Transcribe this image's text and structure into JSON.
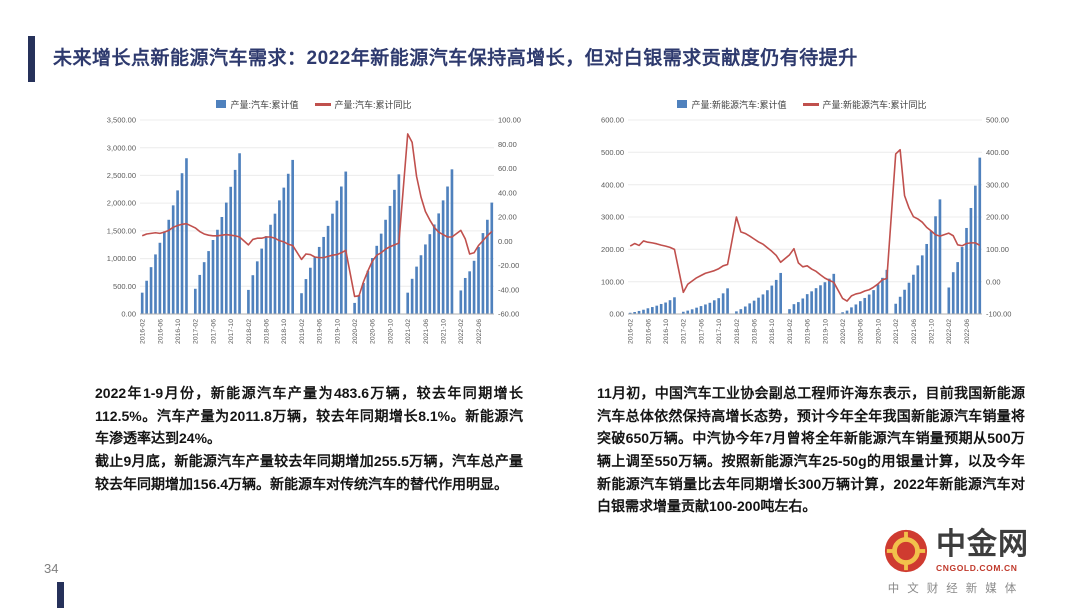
{
  "title": "未来增长点新能源汽车需求：2022年新能源汽车保持高增长，但对白银需求贡献度仍有待提升",
  "colors": {
    "accent_navy": "#26315a",
    "title_text": "#2e3a6e",
    "bar_blue": "#4f81bd",
    "line_red": "#c0504d"
  },
  "chart_data": [
    {
      "type": "bar",
      "subtype": "bar-line-combo",
      "legend_bar": "产量:汽车:累计值",
      "legend_line": "产量:汽车:累计同比",
      "bar_color": "#4f81bd",
      "line_color": "#c0504d",
      "left_axis": {
        "min": 0,
        "max": 3500,
        "step": 500
      },
      "right_axis": {
        "min": -60,
        "max": 100,
        "step": 20
      },
      "x": [
        "2016-02",
        "2016-03",
        "2016-04",
        "2016-05",
        "2016-06",
        "2016-07",
        "2016-08",
        "2016-09",
        "2016-10",
        "2016-11",
        "2016-12",
        "2017-02",
        "2017-03",
        "2017-04",
        "2017-05",
        "2017-06",
        "2017-07",
        "2017-08",
        "2017-09",
        "2017-10",
        "2017-11",
        "2017-12",
        "2018-02",
        "2018-03",
        "2018-04",
        "2018-05",
        "2018-06",
        "2018-07",
        "2018-08",
        "2018-09",
        "2018-10",
        "2018-11",
        "2018-12",
        "2019-02",
        "2019-03",
        "2019-04",
        "2019-05",
        "2019-06",
        "2019-07",
        "2019-08",
        "2019-09",
        "2019-10",
        "2019-11",
        "2019-12",
        "2020-02",
        "2020-03",
        "2020-04",
        "2020-05",
        "2020-06",
        "2020-07",
        "2020-08",
        "2020-09",
        "2020-10",
        "2020-11",
        "2020-12",
        "2021-02",
        "2021-03",
        "2021-04",
        "2021-05",
        "2021-06",
        "2021-07",
        "2021-08",
        "2021-09",
        "2021-10",
        "2021-11",
        "2021-12",
        "2022-02",
        "2022-03",
        "2022-04",
        "2022-05",
        "2022-06",
        "2022-07",
        "2022-08",
        "2022-09"
      ],
      "bars": [
        385,
        600,
        845,
        1075,
        1285,
        1490,
        1700,
        1960,
        2230,
        2540,
        2810,
        455,
        705,
        935,
        1135,
        1335,
        1520,
        1750,
        2010,
        2295,
        2600,
        2900,
        435,
        700,
        950,
        1180,
        1405,
        1610,
        1810,
        2050,
        2280,
        2530,
        2780,
        375,
        630,
        835,
        1020,
        1210,
        1390,
        1590,
        1810,
        2045,
        2300,
        2570,
        200,
        345,
        560,
        780,
        1010,
        1230,
        1450,
        1700,
        1950,
        2240,
        2520,
        385,
        635,
        855,
        1060,
        1255,
        1440,
        1615,
        1815,
        2050,
        2300,
        2610,
        425,
        650,
        770,
        960,
        1210,
        1460,
        1700,
        2010
      ],
      "line": [
        4.5,
        6,
        6.5,
        7,
        6.5,
        7.5,
        9,
        11.5,
        13,
        14,
        14.5,
        11,
        8,
        6,
        5,
        4.5,
        4.5,
        5,
        5.5,
        5,
        4.5,
        3.5,
        -3,
        1.5,
        2.5,
        2.5,
        3.5,
        3.5,
        2.5,
        0.5,
        -0.5,
        -2.5,
        -3.5,
        -15,
        -10.5,
        -11,
        -13,
        -13.5,
        -13.5,
        -12.5,
        -11.5,
        -11,
        -9.5,
        -7.5,
        -45.5,
        -45,
        -33.5,
        -24.5,
        -16.5,
        -11.5,
        -9.5,
        -6.5,
        -4.5,
        -3,
        -1.5,
        88.5,
        81.5,
        53.5,
        36.5,
        24.5,
        17.5,
        11.5,
        7.5,
        5.5,
        3.5,
        3.5,
        9,
        2,
        -10.5,
        -9.5,
        -3.5,
        0.5,
        4.5,
        8.1
      ]
    },
    {
      "type": "bar",
      "subtype": "bar-line-combo",
      "legend_bar": "产量:新能源汽车:累计值",
      "legend_line": "产量:新能源汽车:累计同比",
      "bar_color": "#4f81bd",
      "line_color": "#c0504d",
      "left_axis": {
        "min": 0,
        "max": 600,
        "step": 100
      },
      "right_axis": {
        "min": -100,
        "max": 500,
        "step": 100
      },
      "x": [
        "2016-02",
        "2016-03",
        "2016-04",
        "2016-05",
        "2016-06",
        "2016-07",
        "2016-08",
        "2016-09",
        "2016-10",
        "2016-11",
        "2016-12",
        "2017-02",
        "2017-03",
        "2017-04",
        "2017-05",
        "2017-06",
        "2017-07",
        "2017-08",
        "2017-09",
        "2017-10",
        "2017-11",
        "2017-12",
        "2018-02",
        "2018-03",
        "2018-04",
        "2018-05",
        "2018-06",
        "2018-07",
        "2018-08",
        "2018-09",
        "2018-10",
        "2018-11",
        "2018-12",
        "2019-02",
        "2019-03",
        "2019-04",
        "2019-05",
        "2019-06",
        "2019-07",
        "2019-08",
        "2019-09",
        "2019-10",
        "2019-11",
        "2019-12",
        "2020-02",
        "2020-03",
        "2020-04",
        "2020-05",
        "2020-06",
        "2020-07",
        "2020-08",
        "2020-09",
        "2020-10",
        "2020-11",
        "2020-12",
        "2021-02",
        "2021-03",
        "2021-04",
        "2021-05",
        "2021-06",
        "2021-07",
        "2021-08",
        "2021-09",
        "2021-10",
        "2021-11",
        "2021-12",
        "2022-02",
        "2022-03",
        "2022-04",
        "2022-05",
        "2022-06",
        "2022-07",
        "2022-08",
        "2022-09"
      ],
      "bars": [
        3.8,
        6.2,
        9.4,
        13.2,
        17.7,
        21.5,
        25.8,
        31,
        35.5,
        42.7,
        51.7,
        7,
        10.5,
        14.5,
        19.6,
        24.5,
        29.5,
        34.6,
        42.4,
        49,
        63.9,
        79.4,
        8.2,
        15,
        23.2,
        32.8,
        41.3,
        50.4,
        60.6,
        73.5,
        87.9,
        105.4,
        127,
        15,
        30.4,
        36.8,
        48,
        61.4,
        70.1,
        79.9,
        88.8,
        98.3,
        109.3,
        124.2,
        5.4,
        10.5,
        20.5,
        29.5,
        39.7,
        49.6,
        60.2,
        73.8,
        91.4,
        111.9,
        136.6,
        31.7,
        53.3,
        75,
        96.7,
        121.5,
        150.4,
        181.3,
        216.6,
        256.6,
        302.3,
        354.5,
        82,
        129.3,
        160.5,
        207.1,
        266.1,
        327.9,
        397,
        483.6
      ],
      "line": [
        110,
        118,
        112,
        126,
        122,
        120,
        117,
        113,
        110,
        106,
        100,
        -33,
        -8,
        2,
        12,
        19,
        26,
        30,
        34,
        40,
        49,
        53,
        200,
        154,
        149,
        141,
        132,
        123,
        116,
        105,
        94,
        81,
        60,
        83,
        102,
        58,
        46,
        49,
        39,
        32,
        21,
        11,
        4,
        -2,
        -52,
        -60,
        -44,
        -38,
        -35,
        -29,
        -25,
        -17,
        -7,
        6,
        10,
        395,
        408,
        266,
        228,
        201,
        194,
        184,
        168,
        157,
        145,
        141,
        150,
        142,
        114,
        111,
        118,
        120,
        120,
        112
      ]
    }
  ],
  "commentary": {
    "left": [
      "2022年1-9月份，新能源汽车产量为483.6万辆，较去年同期增长112.5%。汽车产量为2011.8万辆，较去年同期增长8.1%。新能源汽车渗透率达到24%。",
      "截止9月底，新能源汽车产量较去年同期增加255.5万辆，汽车总产量较去年同期增加156.4万辆。新能源车对传统汽车的替代作用明显。"
    ],
    "right": [
      "11月初，中国汽车工业协会副总工程师许海东表示，目前我国新能源汽车总体依然保持高增长态势，预计今年全年我国新能源汽车销量将突破650万辆。中汽协今年7月曾将全年新能源汽车销量预期从500万辆上调至550万辆。按照新能源汽车25-50g的用银量计算，以及今年新能源汽车销量比去年同期增长300万辆计算，2022年新能源汽车对白银需求增量贡献100-200吨左右。"
    ]
  },
  "footer": {
    "page_number": "34"
  },
  "watermark": {
    "name": "中金网",
    "domain": "CNGOLD.COM.CN",
    "tagline": "中文财经新媒体"
  }
}
